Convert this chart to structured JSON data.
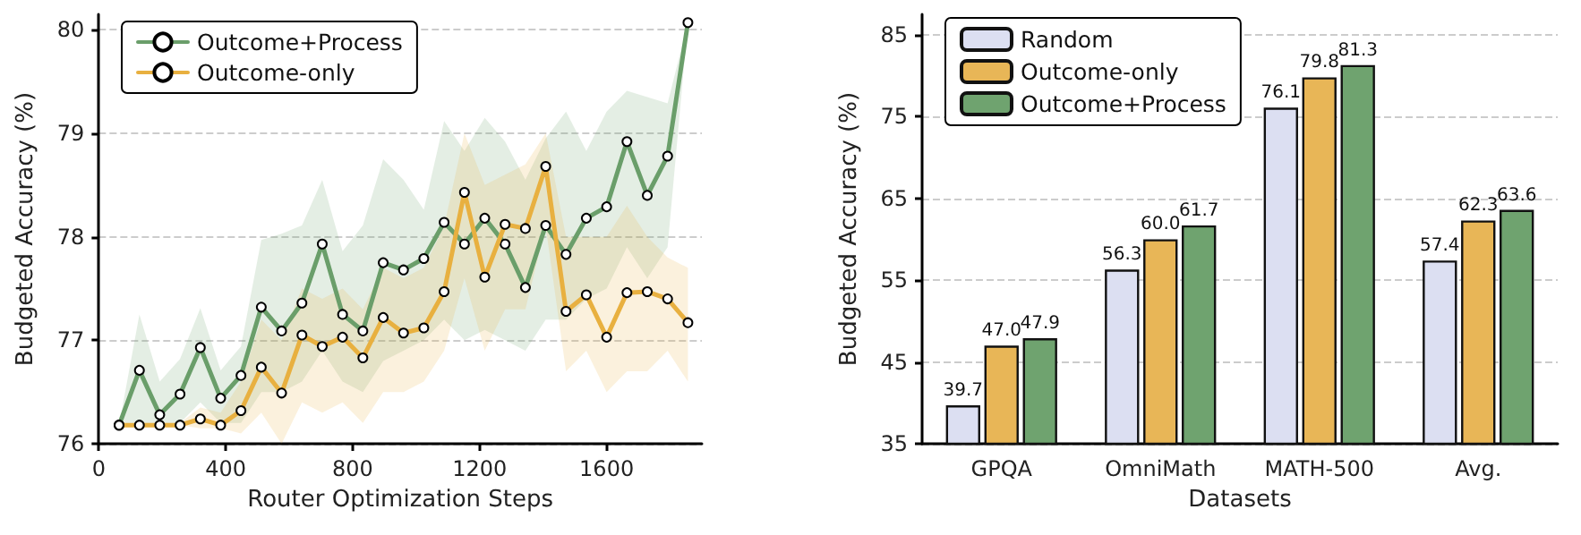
{
  "chart_data": [
    {
      "type": "line",
      "xlabel": "Router Optimization Steps",
      "ylabel": "Budgeted Accuracy (%)",
      "x": [
        64,
        128,
        192,
        256,
        320,
        384,
        448,
        512,
        576,
        640,
        704,
        768,
        832,
        896,
        960,
        1024,
        1088,
        1152,
        1216,
        1280,
        1344,
        1408,
        1472,
        1536,
        1600,
        1664,
        1728,
        1792,
        1856
      ],
      "series": [
        {
          "name": "Outcome+Process",
          "color": "#6a9e6a",
          "values": [
            76.18,
            76.71,
            76.28,
            76.48,
            76.93,
            76.44,
            76.66,
            77.32,
            77.09,
            77.36,
            77.93,
            77.25,
            77.09,
            77.75,
            77.68,
            77.79,
            78.14,
            77.93,
            78.18,
            77.93,
            77.51,
            78.11,
            77.83,
            78.18,
            78.29,
            78.92,
            78.4,
            78.78,
            80.07
          ],
          "lower": [
            76.18,
            76.2,
            76.15,
            76.2,
            76.4,
            76.2,
            76.2,
            76.5,
            76.5,
            76.6,
            76.9,
            76.6,
            76.5,
            76.8,
            76.9,
            77.0,
            77.2,
            77.0,
            77.1,
            77.0,
            76.9,
            77.2,
            77.2,
            77.4,
            77.5,
            77.9,
            77.6,
            77.9,
            80.07
          ],
          "upper": [
            76.18,
            77.25,
            76.6,
            76.82,
            77.31,
            76.71,
            76.94,
            77.97,
            78.03,
            78.11,
            78.55,
            77.86,
            78.11,
            78.75,
            78.55,
            78.26,
            79.12,
            78.83,
            79.15,
            78.92,
            78.55,
            78.95,
            79.21,
            78.83,
            79.21,
            79.41,
            79.35,
            79.29,
            80.07
          ]
        },
        {
          "name": "Outcome-only",
          "color": "#e8b040",
          "values": [
            76.18,
            76.18,
            76.18,
            76.18,
            76.24,
            76.18,
            76.32,
            76.74,
            76.49,
            77.05,
            76.94,
            77.03,
            76.83,
            77.22,
            77.07,
            77.12,
            77.47,
            78.43,
            77.61,
            78.12,
            78.08,
            78.68,
            77.28,
            77.44,
            77.03,
            77.46,
            77.47,
            77.4,
            77.17
          ],
          "lower": [
            76.18,
            76.18,
            76.18,
            76.18,
            76.15,
            76.15,
            76.1,
            76.3,
            76.0,
            76.4,
            76.3,
            76.4,
            76.2,
            76.5,
            76.5,
            76.6,
            76.9,
            77.6,
            76.9,
            77.3,
            77.3,
            78.1,
            76.7,
            76.9,
            76.5,
            76.7,
            76.7,
            76.9,
            76.6
          ],
          "upper": [
            76.18,
            76.2,
            76.2,
            76.2,
            76.35,
            76.3,
            76.6,
            77.2,
            77.0,
            77.5,
            77.4,
            77.5,
            77.3,
            77.7,
            77.6,
            77.7,
            78.1,
            79.0,
            78.5,
            78.6,
            78.7,
            79.0,
            78.0,
            78.0,
            78.0,
            78.3,
            78.0,
            77.8,
            77.7
          ]
        }
      ],
      "xlim": [
        0,
        1900
      ],
      "xticks": [
        0,
        400,
        800,
        1200,
        1600
      ],
      "ylim": [
        76,
        80.15
      ],
      "yticks": [
        76,
        77,
        78,
        79,
        80
      ],
      "grid": "y",
      "legend": "top left",
      "marker": "circle",
      "line_style": "solid"
    },
    {
      "type": "bar",
      "xlabel": "Datasets",
      "ylabel": "Budgeted Accuracy (%)",
      "categories": [
        "GPQA",
        "OmniMath",
        "MATH-500",
        "Avg."
      ],
      "series": [
        {
          "name": "Random",
          "color": "#dcdff2",
          "values": [
            39.7,
            56.3,
            76.1,
            57.4
          ],
          "value_labels": [
            "39.7",
            "56.3",
            "76.1",
            "57.4"
          ]
        },
        {
          "name": "Outcome-only",
          "color": "#e8b657",
          "values": [
            47.0,
            60.0,
            79.8,
            62.3
          ],
          "value_labels": [
            "47.0",
            "60.0",
            "79.8",
            "62.3"
          ]
        },
        {
          "name": "Outcome+Process",
          "color": "#6fa36f",
          "values": [
            47.9,
            61.7,
            81.3,
            63.6
          ],
          "value_labels": [
            "47.9",
            "61.7",
            "81.3",
            "63.6"
          ]
        }
      ],
      "ylim": [
        35,
        87.5
      ],
      "yticks": [
        35,
        45,
        55,
        65,
        75,
        85
      ],
      "grid": "y",
      "legend": "top left"
    }
  ]
}
